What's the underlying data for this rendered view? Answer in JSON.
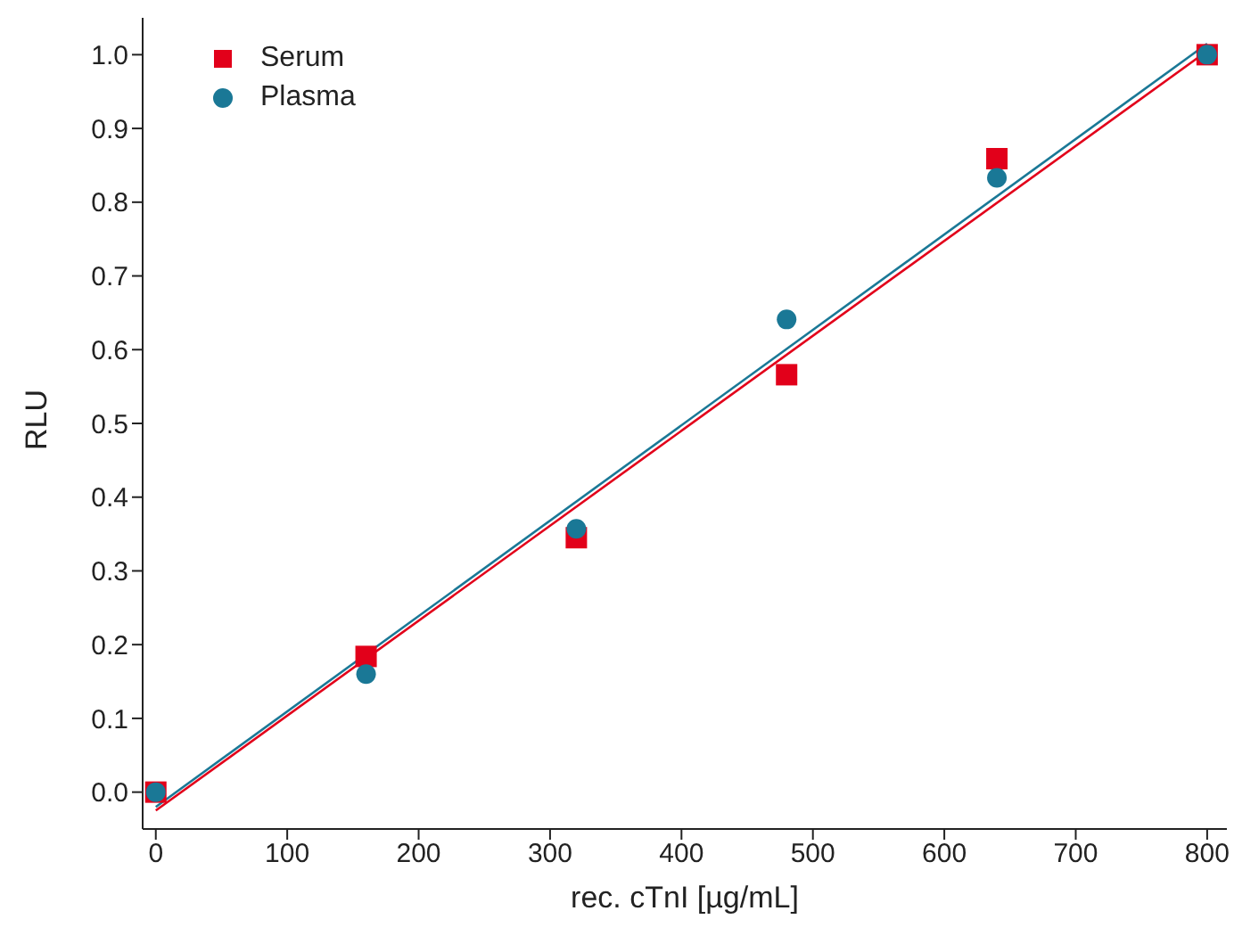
{
  "chart_data": {
    "type": "scatter",
    "xlabel": "rec. cTnI [µg/mL]",
    "ylabel": "RLU",
    "xlim": [
      -10,
      815
    ],
    "xticks": [
      0,
      100,
      200,
      300,
      400,
      500,
      600,
      700,
      800
    ],
    "ylim": [
      -0.05,
      1.05
    ],
    "yticks": [
      {
        "value": 0,
        "label": "0.0"
      },
      {
        "value": 0.1,
        "label": "0.1"
      },
      {
        "value": 0.2,
        "label": "0.2"
      },
      {
        "value": 0.3,
        "label": "0.3"
      },
      {
        "value": 0.4,
        "label": "0.4"
      },
      {
        "value": 0.5,
        "label": "0.5"
      },
      {
        "value": 0.6,
        "label": "0.6"
      },
      {
        "value": 0.7,
        "label": "0.7"
      },
      {
        "value": 0.8,
        "label": "0.8"
      },
      {
        "value": 0.9,
        "label": "0.9"
      },
      {
        "value": 1,
        "label": "1.0"
      }
    ],
    "grid": false,
    "legend": "top left",
    "series": [
      {
        "name": "Serum",
        "type": "scatter",
        "marker": "square",
        "color": "#e2001a",
        "x": [
          0,
          160,
          320,
          480,
          640,
          800
        ],
        "values": [
          0,
          0.184,
          0.345,
          0.566,
          0.859,
          1.0
        ]
      },
      {
        "name": "Plasma",
        "type": "scatter",
        "marker": "circle",
        "color": "#1a7896",
        "x": [
          0,
          160,
          320,
          480,
          640,
          800
        ],
        "values": [
          0,
          0.16,
          0.357,
          0.641,
          0.833,
          1.0
        ]
      },
      {
        "type": "line",
        "marker": "none",
        "color": "#e2001a",
        "x": [
          0,
          800
        ],
        "values": [
          -0.025,
          1.005
        ]
      },
      {
        "type": "line",
        "marker": "none",
        "color": "#1a7896",
        "x": [
          0,
          800
        ],
        "values": [
          -0.02,
          1.015
        ]
      }
    ]
  }
}
